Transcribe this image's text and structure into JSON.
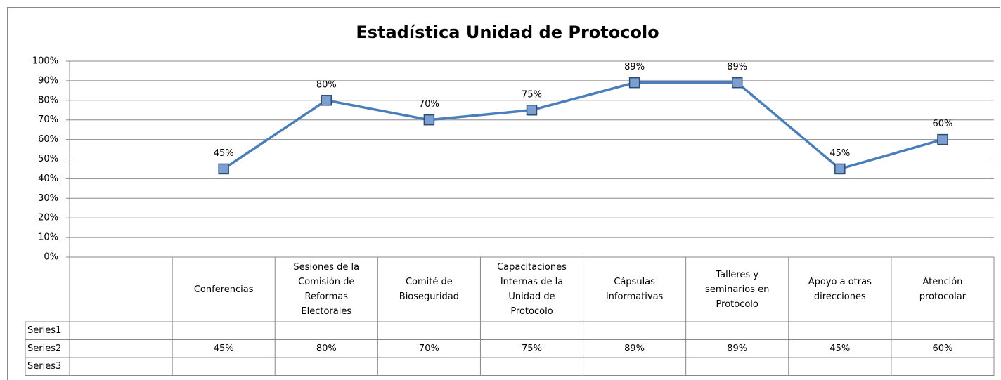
{
  "chart_data": {
    "type": "line",
    "title": "Estadística Unidad de Protocolo",
    "categories": [
      null,
      "Conferencias",
      "Sesiones de la Comisión de Reformas Electorales",
      "Comité de Bioseguridad",
      "Capacitaciones Internas de la Unidad de Protocolo",
      "Cápsulas Informativas",
      "Talleres y seminarios en Protocolo",
      "Apoyo a otras direcciones",
      "Atención protocolar"
    ],
    "series": [
      {
        "name": "Series1",
        "values": [
          null,
          null,
          null,
          null,
          null,
          null,
          null,
          null,
          null
        ]
      },
      {
        "name": "Series2",
        "color": "#4a7ebb",
        "values": [
          null,
          45,
          80,
          70,
          75,
          89,
          89,
          45,
          60
        ],
        "value_labels": [
          null,
          "45%",
          "80%",
          "70%",
          "75%",
          "89%",
          "89%",
          "45%",
          "60%"
        ]
      },
      {
        "name": "Series3",
        "values": [
          null,
          null,
          null,
          null,
          null,
          null,
          null,
          null,
          null
        ]
      }
    ],
    "ylim": [
      0,
      100
    ],
    "yticks": [
      {
        "value": 0,
        "label": "0%"
      },
      {
        "value": 10,
        "label": "10%"
      },
      {
        "value": 20,
        "label": "20%"
      },
      {
        "value": 30,
        "label": "30%"
      },
      {
        "value": 40,
        "label": "40%"
      },
      {
        "value": 50,
        "label": "50%"
      },
      {
        "value": 60,
        "label": "60%"
      },
      {
        "value": 70,
        "label": "70%"
      },
      {
        "value": 80,
        "label": "80%"
      },
      {
        "value": 90,
        "label": "90%"
      },
      {
        "value": 100,
        "label": "100%"
      }
    ],
    "grid": true,
    "data_table": true
  }
}
